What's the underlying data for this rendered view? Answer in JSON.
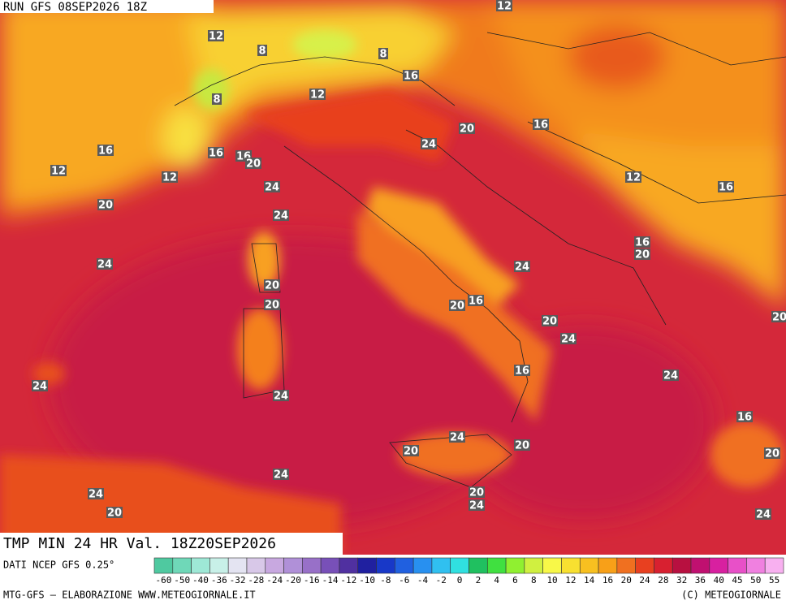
{
  "header": {
    "run": "RUN GFS 08SEP2026 18Z"
  },
  "map": {
    "contour_labels": [
      "12",
      "12",
      "8",
      "8",
      "8",
      "12",
      "16",
      "20",
      "16",
      "24",
      "16",
      "16",
      "16",
      "20",
      "12",
      "12",
      "12",
      "16",
      "24",
      "20",
      "24",
      "16",
      "20",
      "24",
      "24",
      "20",
      "16",
      "20",
      "20",
      "20",
      "20",
      "24",
      "16",
      "24",
      "24",
      "24",
      "16",
      "24",
      "20",
      "20",
      "20",
      "24",
      "24",
      "20",
      "24",
      "20",
      "24"
    ]
  },
  "footer": {
    "title": "TMP MIN 24 HR Val. 18Z20SEP2026",
    "source": "DATI NCEP GFS 0.25°",
    "credit_left": "MTG-GFS — ELABORAZIONE WWW.METEOGIORNALE.IT",
    "credit_right": "(C) METEOGIORNALE"
  },
  "colorbar": {
    "ticks": [
      -60,
      -50,
      -40,
      -36,
      -32,
      -28,
      -24,
      -20,
      -16,
      -14,
      -12,
      -10,
      -8,
      -6,
      -4,
      -2,
      0,
      2,
      4,
      6,
      8,
      10,
      12,
      14,
      16,
      20,
      24,
      28,
      32,
      36,
      40,
      45,
      50,
      55
    ],
    "colors": [
      "#4fc9a0",
      "#6fd8b8",
      "#9ee8d6",
      "#c8f0e8",
      "#e4e4f2",
      "#d8c8e8",
      "#c8a8e0",
      "#b090d8",
      "#9870c8",
      "#7850b8",
      "#5030a0",
      "#2020a0",
      "#1838c8",
      "#2060e0",
      "#2890f0",
      "#30c0f0",
      "#30e0e0",
      "#20c060",
      "#40e040",
      "#90f030",
      "#d0f040",
      "#f8f848",
      "#f8e030",
      "#f8c020",
      "#f8a018",
      "#f07020",
      "#e84020",
      "#d82030",
      "#b81040",
      "#c01070",
      "#d820a0",
      "#e850c8",
      "#f080e0",
      "#f8b0f0"
    ]
  }
}
